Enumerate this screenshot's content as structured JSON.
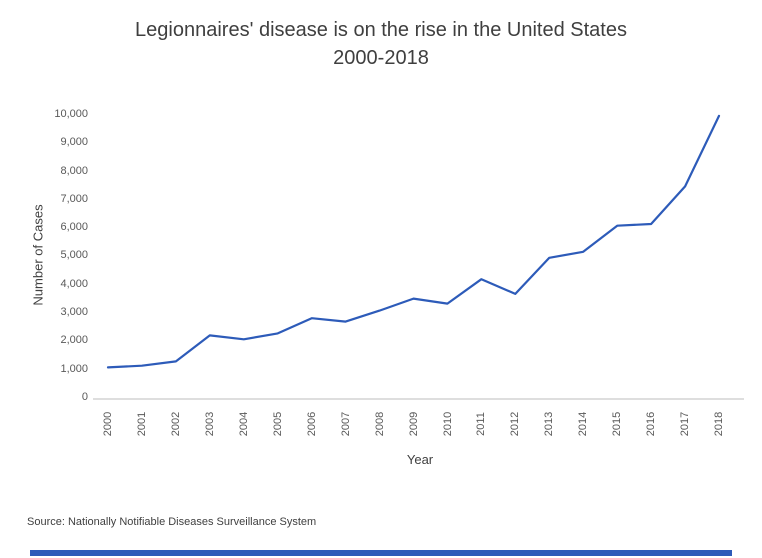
{
  "page": {
    "title_line1": "Legionnaires' disease is on the rise in the United States",
    "title_line2": "2000-2018",
    "source": "Source: Nationally Notifiable Diseases Surveillance System"
  },
  "chart_data": {
    "type": "line",
    "title": "Legionnaires' disease is on the rise in the United States 2000-2018",
    "xlabel": "Year",
    "ylabel": "Number of Cases",
    "categories": [
      "2000",
      "2001",
      "2002",
      "2003",
      "2004",
      "2005",
      "2006",
      "2007",
      "2008",
      "2009",
      "2010",
      "2011",
      "2012",
      "2013",
      "2014",
      "2015",
      "2016",
      "2017",
      "2018"
    ],
    "values": [
      1110,
      1168,
      1321,
      2232,
      2093,
      2301,
      2834,
      2716,
      3102,
      3522,
      3346,
      4202,
      3688,
      4954,
      5166,
      6079,
      6141,
      7458,
      9933
    ],
    "ylim": [
      0,
      10000
    ],
    "y_tick_step": 1000,
    "y_tick_labels": [
      "0",
      "1,000",
      "2,000",
      "3,000",
      "4,000",
      "5,000",
      "6,000",
      "7,000",
      "8,000",
      "9,000",
      "10,000"
    ],
    "grid": false,
    "legend": "none",
    "line_color": "#2d5bb9",
    "axis_line_color": "#c9c9c9",
    "source": "Source: Nationally Notifiable Diseases Surveillance System"
  }
}
